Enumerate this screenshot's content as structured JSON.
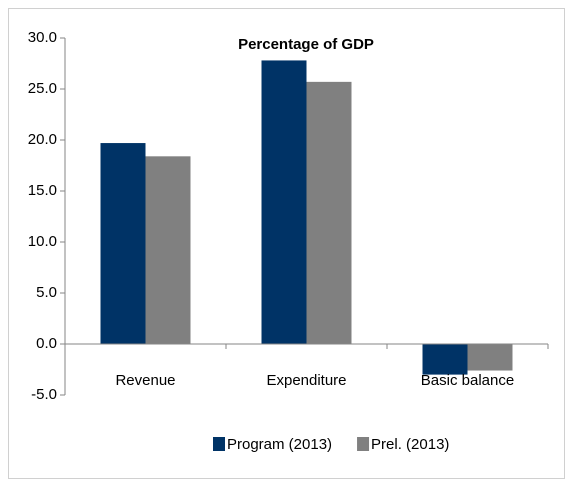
{
  "chart_data": {
    "type": "bar",
    "title": "Percentage of GDP",
    "categories": [
      "Revenue",
      "Expenditure",
      "Basic balance"
    ],
    "series": [
      {
        "name": "Program (2013)",
        "color": "#003366",
        "values": [
          19.7,
          27.8,
          -3.0
        ]
      },
      {
        "name": "Prel. (2013)",
        "color": "#808080",
        "values": [
          18.4,
          25.7,
          -2.6
        ]
      }
    ],
    "ylim": [
      -5,
      30
    ],
    "yticks": [
      {
        "value": -5,
        "label": "-5.0"
      },
      {
        "value": 0,
        "label": "0.0"
      },
      {
        "value": 5,
        "label": "5.0"
      },
      {
        "value": 10,
        "label": "10.0"
      },
      {
        "value": 15,
        "label": "15.0"
      },
      {
        "value": 20,
        "label": "20.0"
      },
      {
        "value": 25,
        "label": "25.0"
      },
      {
        "value": 30,
        "label": "30.0"
      }
    ],
    "grid": false
  }
}
